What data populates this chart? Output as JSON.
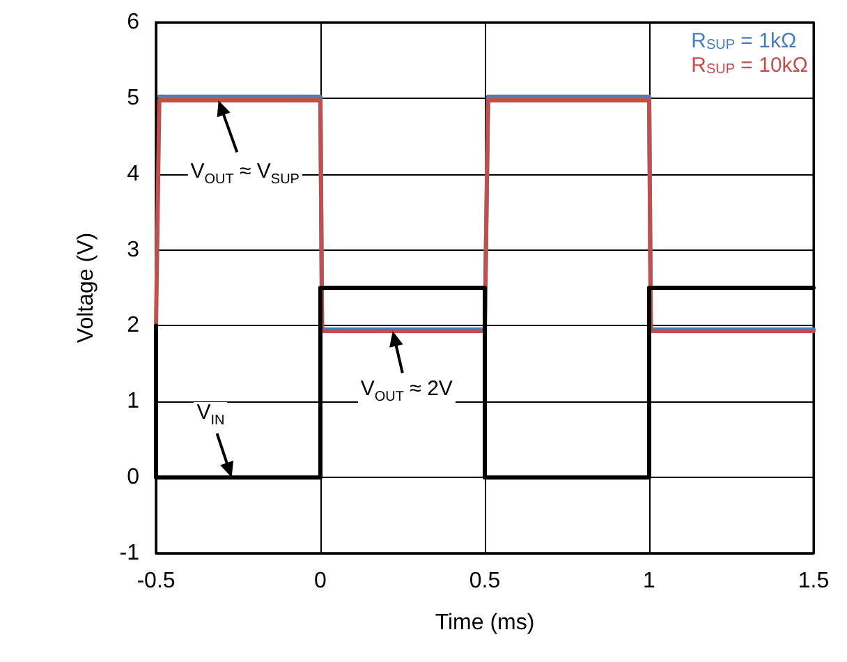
{
  "chart_data": {
    "type": "line",
    "xlabel": "Time (ms)",
    "ylabel": "Voltage (V)",
    "xlim": [
      -0.5,
      1.5
    ],
    "xticks": [
      -0.5,
      0,
      0.5,
      1,
      1.5
    ],
    "ylim": [
      -1,
      6
    ],
    "yticks": [
      -1,
      0,
      1,
      2,
      3,
      4,
      5,
      6
    ],
    "grid": true,
    "legend": "top right",
    "marker": "none",
    "line_style": "solid",
    "series": [
      {
        "name": "R$_{SUP}$ = 1kΩ",
        "color": "#4a7ebb",
        "x": [
          -0.49,
          0,
          0.005,
          0.5,
          0.51,
          1,
          1.005,
          1.5
        ],
        "values": [
          5.02,
          5.02,
          1.95,
          1.95,
          5.02,
          5.02,
          1.95,
          1.95
        ]
      },
      {
        "name": "R$_{SUP}$ = 10kΩ",
        "color": "#c0504d",
        "x": [
          -0.5,
          -0.49,
          0,
          0.005,
          0.5,
          0.51,
          1,
          1.005,
          1.5
        ],
        "values": [
          2,
          4.97,
          4.97,
          1.93,
          1.93,
          4.97,
          4.97,
          1.93,
          1.93
        ]
      },
      {
        "color": "#000000",
        "x": [
          -0.5,
          -0.5,
          0,
          0,
          0.5,
          0.5,
          1,
          1,
          1.5
        ],
        "values": [
          2,
          0,
          0,
          2.5,
          2.5,
          0,
          0,
          2.5,
          2.5
        ]
      }
    ],
    "annotations": [
      {
        "text": "V$_{OUT}$ ≈ V$_{SUP}$",
        "x": -0.31,
        "y": 4.97
      },
      {
        "text": "V$_{OUT}$ ≈ 2V",
        "x": 0.22,
        "y": 1.93
      },
      {
        "text": "V$_{IN}$",
        "x": -0.27,
        "y": 0
      }
    ]
  }
}
